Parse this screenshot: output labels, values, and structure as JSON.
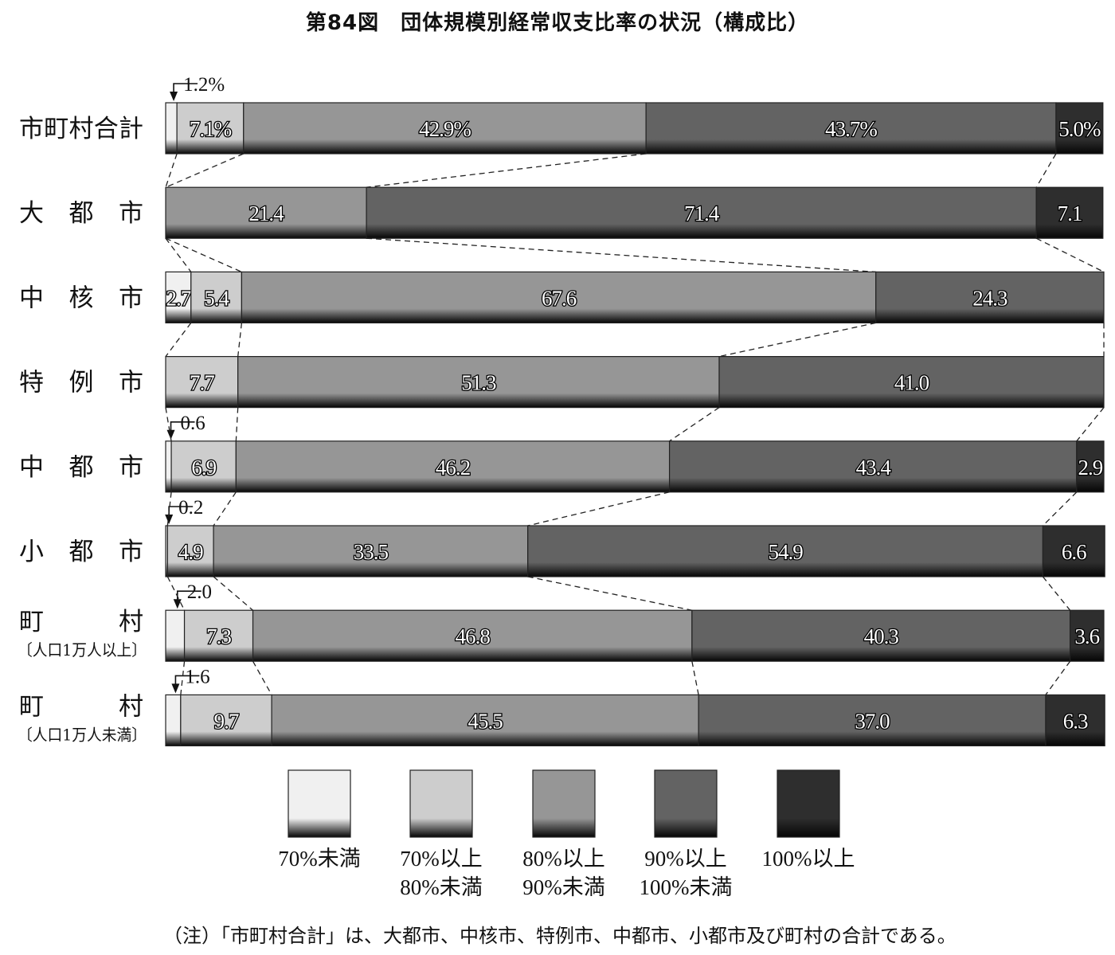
{
  "title": "第84図　団体規模別経常収支比率の状況（構成比）",
  "note": "（注）「市町村合計」は、大都市、中核市、特例市、中都市、小都市及び町村の合計である。",
  "colors": {
    "lt70": "#f0f0f0",
    "70to80": "#cdcdcd",
    "80to90": "#969696",
    "90to100": "#636363",
    "ge100": "#2e2e2e"
  },
  "chart_data": {
    "type": "bar",
    "orientation": "horizontal",
    "stacked": "percent",
    "categories": [
      {
        "label": "市町村合計"
      },
      {
        "label": "大都市"
      },
      {
        "label": "中核市"
      },
      {
        "label": "特例市"
      },
      {
        "label": "中都市"
      },
      {
        "label": "小都市"
      },
      {
        "label": "町村",
        "sublabel": "〔人口1万人以上〕"
      },
      {
        "label": "町村",
        "sublabel": "〔人口1万人未満〕"
      }
    ],
    "series": [
      {
        "name": "70%未満",
        "values": [
          1.2,
          0,
          2.7,
          0,
          0.6,
          0.2,
          2.0,
          1.6
        ]
      },
      {
        "name": "70%以上\n80%未満",
        "values": [
          7.1,
          0,
          5.4,
          7.7,
          6.9,
          4.9,
          7.3,
          9.7
        ]
      },
      {
        "name": "80%以上\n90%未満",
        "values": [
          42.9,
          21.4,
          67.6,
          51.3,
          46.2,
          33.5,
          46.8,
          45.5
        ]
      },
      {
        "name": "90%以上\n100%未満",
        "values": [
          43.7,
          71.4,
          24.3,
          41.0,
          43.4,
          54.9,
          40.3,
          37.0
        ]
      },
      {
        "name": "100%以上",
        "values": [
          5.0,
          7.1,
          0,
          0,
          2.9,
          6.6,
          3.6,
          6.3
        ]
      }
    ],
    "data_labels": [
      [
        "1.2%",
        "7.1%",
        "42.9%",
        "43.7%",
        "5.0%"
      ],
      [
        "",
        "",
        "21.4",
        "71.4",
        "7.1"
      ],
      [
        "2.7",
        "5.4",
        "67.6",
        "24.3",
        ""
      ],
      [
        "",
        "7.7",
        "51.3",
        "41.0",
        ""
      ],
      [
        "0.6",
        "6.9",
        "46.2",
        "43.4",
        "2.9"
      ],
      [
        "0.2",
        "4.9",
        "33.5",
        "54.9",
        "6.6"
      ],
      [
        "2.0",
        "7.3",
        "46.8",
        "40.3",
        "3.6"
      ],
      [
        "1.6",
        "9.7",
        "45.5",
        "37.0",
        "6.3"
      ]
    ],
    "callout_values": [
      0,
      4,
      5,
      6,
      7
    ],
    "xlim": [
      0,
      100
    ],
    "legend_position": "bottom",
    "grid": false
  }
}
